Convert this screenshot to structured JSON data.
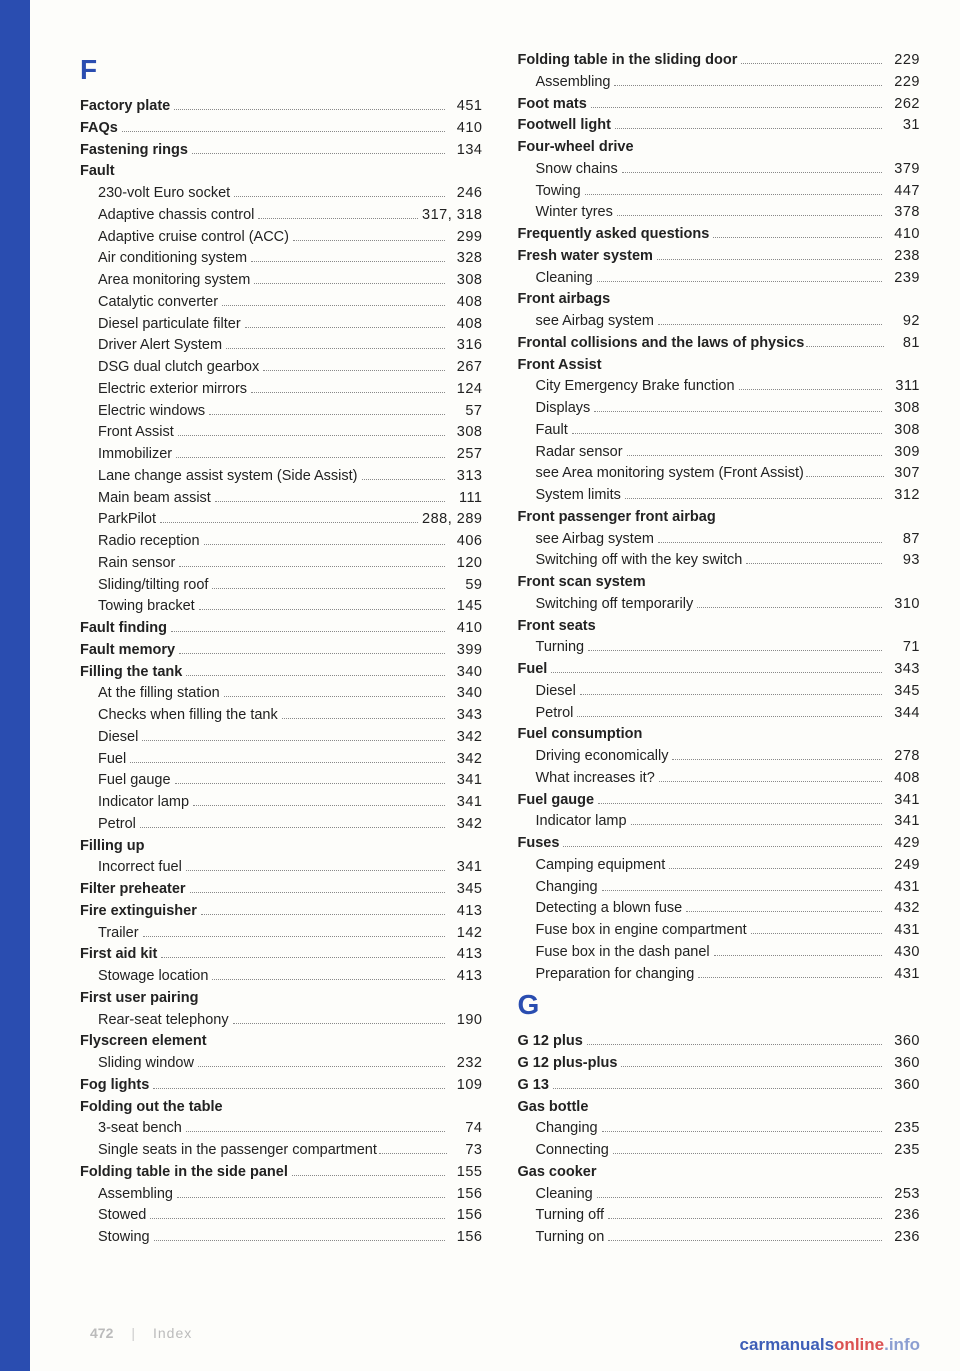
{
  "footer": {
    "page": "472",
    "label": "Index"
  },
  "watermark": {
    "a": "carmanuals",
    "b": "online",
    "c": ".info"
  },
  "left": [
    {
      "type": "letter",
      "text": "F"
    },
    {
      "label": "Factory plate",
      "page": "451",
      "bold": true
    },
    {
      "label": "FAQs",
      "page": "410",
      "bold": true
    },
    {
      "label": "Fastening rings",
      "page": "134",
      "bold": true
    },
    {
      "label": "Fault",
      "bold": true,
      "nopage": true
    },
    {
      "label": "230-volt Euro socket",
      "page": "246",
      "sub": true
    },
    {
      "label": "Adaptive chassis control",
      "page": "317, 318",
      "sub": true
    },
    {
      "label": "Adaptive cruise control (ACC)",
      "page": "299",
      "sub": true
    },
    {
      "label": "Air conditioning system",
      "page": "328",
      "sub": true
    },
    {
      "label": "Area monitoring system",
      "page": "308",
      "sub": true
    },
    {
      "label": "Catalytic converter",
      "page": "408",
      "sub": true
    },
    {
      "label": "Diesel particulate filter",
      "page": "408",
      "sub": true
    },
    {
      "label": "Driver Alert System",
      "page": "316",
      "sub": true
    },
    {
      "label": "DSG dual clutch gearbox",
      "page": "267",
      "sub": true
    },
    {
      "label": "Electric exterior mirrors",
      "page": "124",
      "sub": true
    },
    {
      "label": "Electric windows",
      "page": "57",
      "sub": true
    },
    {
      "label": "Front Assist",
      "page": "308",
      "sub": true
    },
    {
      "label": "Immobilizer",
      "page": "257",
      "sub": true
    },
    {
      "label": "Lane change assist system (Side Assist)",
      "page": "313",
      "sub": true
    },
    {
      "label": "Main beam assist",
      "page": "111",
      "sub": true
    },
    {
      "label": "ParkPilot",
      "page": "288, 289",
      "sub": true
    },
    {
      "label": "Radio reception",
      "page": "406",
      "sub": true
    },
    {
      "label": "Rain sensor",
      "page": "120",
      "sub": true
    },
    {
      "label": "Sliding/tilting roof",
      "page": "59",
      "sub": true
    },
    {
      "label": "Towing bracket",
      "page": "145",
      "sub": true
    },
    {
      "label": "Fault finding",
      "page": "410",
      "bold": true
    },
    {
      "label": "Fault memory",
      "page": "399",
      "bold": true
    },
    {
      "label": "Filling the tank",
      "page": "340",
      "bold": true
    },
    {
      "label": "At the filling station",
      "page": "340",
      "sub": true
    },
    {
      "label": "Checks when filling the tank",
      "page": "343",
      "sub": true
    },
    {
      "label": "Diesel",
      "page": "342",
      "sub": true
    },
    {
      "label": "Fuel",
      "page": "342",
      "sub": true
    },
    {
      "label": "Fuel gauge",
      "page": "341",
      "sub": true
    },
    {
      "label": "Indicator lamp",
      "page": "341",
      "sub": true
    },
    {
      "label": "Petrol",
      "page": "342",
      "sub": true
    },
    {
      "label": "Filling up",
      "bold": true,
      "nopage": true
    },
    {
      "label": "Incorrect fuel",
      "page": "341",
      "sub": true
    },
    {
      "label": "Filter preheater",
      "page": "345",
      "bold": true
    },
    {
      "label": "Fire extinguisher",
      "page": "413",
      "bold": true
    },
    {
      "label": "Trailer",
      "page": "142",
      "sub": true
    },
    {
      "label": "First aid kit",
      "page": "413",
      "bold": true
    },
    {
      "label": "Stowage location",
      "page": "413",
      "sub": true
    },
    {
      "label": "First user pairing",
      "bold": true,
      "nopage": true
    },
    {
      "label": "Rear-seat telephony",
      "page": "190",
      "sub": true
    },
    {
      "label": "Flyscreen element",
      "bold": true,
      "nopage": true
    },
    {
      "label": "Sliding window",
      "page": "232",
      "sub": true
    },
    {
      "label": "Fog lights",
      "page": "109",
      "bold": true
    },
    {
      "label": "Folding out the table",
      "bold": true,
      "nopage": true
    },
    {
      "label": "3-seat bench",
      "page": "74",
      "sub": true
    },
    {
      "label": "Single seats in the passenger compartment",
      "page": "73",
      "sub": true,
      "tight": true
    },
    {
      "label": "Folding table in the side panel",
      "page": "155",
      "bold": true
    },
    {
      "label": "Assembling",
      "page": "156",
      "sub": true
    },
    {
      "label": "Stowed",
      "page": "156",
      "sub": true
    },
    {
      "label": "Stowing",
      "page": "156",
      "sub": true
    }
  ],
  "right": [
    {
      "label": "Folding table in the sliding door",
      "page": "229",
      "bold": true
    },
    {
      "label": "Assembling",
      "page": "229",
      "sub": true
    },
    {
      "label": "Foot mats",
      "page": "262",
      "bold": true
    },
    {
      "label": "Footwell light",
      "page": "31",
      "bold": true
    },
    {
      "label": "Four-wheel drive",
      "bold": true,
      "nopage": true
    },
    {
      "label": "Snow chains",
      "page": "379",
      "sub": true
    },
    {
      "label": "Towing",
      "page": "447",
      "sub": true
    },
    {
      "label": "Winter tyres",
      "page": "378",
      "sub": true
    },
    {
      "label": "Frequently asked questions",
      "page": "410",
      "bold": true
    },
    {
      "label": "Fresh water system",
      "page": "238",
      "bold": true
    },
    {
      "label": "Cleaning",
      "page": "239",
      "sub": true
    },
    {
      "label": "Front airbags",
      "bold": true,
      "nopage": true
    },
    {
      "label": "see Airbag system",
      "page": "92",
      "sub": true
    },
    {
      "label": "Frontal collisions and the laws of physics",
      "page": "81",
      "bold": true,
      "tight": true
    },
    {
      "label": "Front Assist",
      "bold": true,
      "nopage": true
    },
    {
      "label": "City Emergency Brake function",
      "page": "311",
      "sub": true
    },
    {
      "label": "Displays",
      "page": "308",
      "sub": true
    },
    {
      "label": "Fault",
      "page": "308",
      "sub": true
    },
    {
      "label": "Radar sensor",
      "page": "309",
      "sub": true
    },
    {
      "label": "see Area monitoring system (Front Assist)",
      "page": "307",
      "sub": true,
      "tight": true
    },
    {
      "label": "System limits",
      "page": "312",
      "sub": true
    },
    {
      "label": "Front passenger front airbag",
      "bold": true,
      "nopage": true
    },
    {
      "label": "see Airbag system",
      "page": "87",
      "sub": true
    },
    {
      "label": "Switching off with the key switch",
      "page": "93",
      "sub": true
    },
    {
      "label": "Front scan system",
      "bold": true,
      "nopage": true
    },
    {
      "label": "Switching off temporarily",
      "page": "310",
      "sub": true
    },
    {
      "label": "Front seats",
      "bold": true,
      "nopage": true
    },
    {
      "label": "Turning",
      "page": "71",
      "sub": true
    },
    {
      "label": "Fuel",
      "page": "343",
      "bold": true
    },
    {
      "label": "Diesel",
      "page": "345",
      "sub": true
    },
    {
      "label": "Petrol",
      "page": "344",
      "sub": true
    },
    {
      "label": "Fuel consumption",
      "bold": true,
      "nopage": true
    },
    {
      "label": "Driving economically",
      "page": "278",
      "sub": true
    },
    {
      "label": "What increases it?",
      "page": "408",
      "sub": true
    },
    {
      "label": "Fuel gauge",
      "page": "341",
      "bold": true
    },
    {
      "label": "Indicator lamp",
      "page": "341",
      "sub": true
    },
    {
      "label": "Fuses",
      "page": "429",
      "bold": true
    },
    {
      "label": "Camping equipment",
      "page": "249",
      "sub": true
    },
    {
      "label": "Changing",
      "page": "431",
      "sub": true
    },
    {
      "label": "Detecting a blown fuse",
      "page": "432",
      "sub": true
    },
    {
      "label": "Fuse box in engine compartment",
      "page": "431",
      "sub": true
    },
    {
      "label": "Fuse box in the dash panel",
      "page": "430",
      "sub": true
    },
    {
      "label": "Preparation for changing",
      "page": "431",
      "sub": true
    },
    {
      "type": "letter",
      "text": "G"
    },
    {
      "label": "G 12 plus",
      "page": "360",
      "bold": true
    },
    {
      "label": "G 12 plus-plus",
      "page": "360",
      "bold": true
    },
    {
      "label": "G 13",
      "page": "360",
      "bold": true
    },
    {
      "label": "Gas bottle",
      "bold": true,
      "nopage": true
    },
    {
      "label": "Changing",
      "page": "235",
      "sub": true
    },
    {
      "label": "Connecting",
      "page": "235",
      "sub": true
    },
    {
      "label": "Gas cooker",
      "bold": true,
      "nopage": true
    },
    {
      "label": "Cleaning",
      "page": "253",
      "sub": true
    },
    {
      "label": "Turning off",
      "page": "236",
      "sub": true
    },
    {
      "label": "Turning on",
      "page": "236",
      "sub": true
    }
  ]
}
